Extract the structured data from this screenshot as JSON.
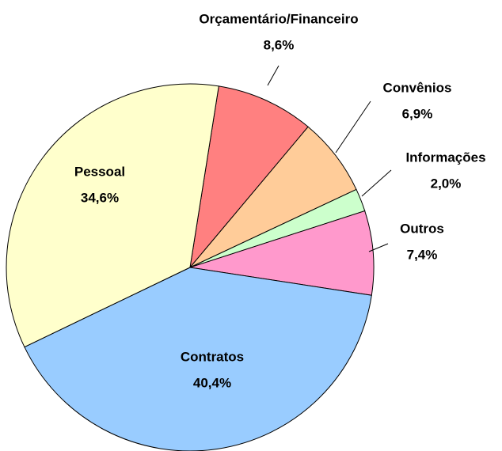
{
  "chart_data": {
    "type": "pie",
    "categories": [
      "Orçamentário/Financeiro",
      "Convênios",
      "Informações",
      "Outros",
      "Contratos",
      "Pessoal"
    ],
    "values": [
      8.6,
      6.9,
      2.0,
      7.4,
      40.4,
      34.6
    ],
    "value_labels": [
      "8,6%",
      "6,9%",
      "2,0%",
      "7,4%",
      "40,4%",
      "34,6%"
    ],
    "colors": [
      "#ff8080",
      "#ffcc99",
      "#ccffcc",
      "#ff99cc",
      "#99ccff",
      "#ffffcc"
    ]
  }
}
